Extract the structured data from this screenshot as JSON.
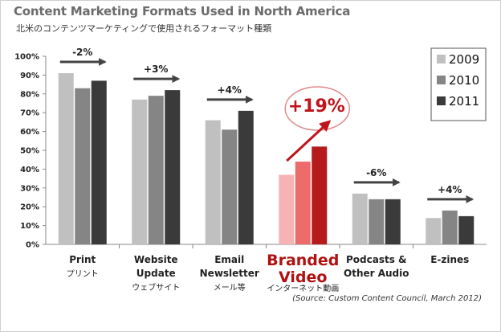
{
  "title": "Content Marketing Formats Used in North America",
  "subtitle": "北米のコンテンツマーケティングで使用されるフォーマット種類",
  "source": "(Source: Custom Content Council, March 2012)",
  "colors": {
    "s2009": "#c0c0c0",
    "s2010": "#858585",
    "s2011": "#3a3a3a",
    "hl2009": "#f7b3b3",
    "hl2010": "#ee6b6b",
    "hl2011": "#b51b1b",
    "accent": "#c0141c"
  },
  "chart_data": {
    "type": "bar",
    "ylim": [
      0,
      100
    ],
    "yticks": [
      "0%",
      "10%",
      "20%",
      "30%",
      "40%",
      "50%",
      "60%",
      "70%",
      "80%",
      "90%",
      "100%"
    ],
    "legend_position": "top-right",
    "grid": false,
    "categories": [
      {
        "en": [
          "Print"
        ],
        "jp": "プリント",
        "delta": "-2%",
        "highlight": false
      },
      {
        "en": [
          "Website",
          "Update"
        ],
        "jp": "ウェブサイト",
        "delta": "+3%",
        "highlight": false
      },
      {
        "en": [
          "Email",
          "Newsletter"
        ],
        "jp": "メール等",
        "delta": "+4%",
        "highlight": false
      },
      {
        "en": [
          "Branded",
          "Video"
        ],
        "jp": "インターネット動画",
        "delta": "+19%",
        "highlight": true
      },
      {
        "en": [
          "Podcasts &",
          "Other Audio"
        ],
        "jp": "",
        "delta": "-6%",
        "highlight": false
      },
      {
        "en": [
          "E-zines"
        ],
        "jp": "",
        "delta": "+4%",
        "highlight": false
      }
    ],
    "series": [
      {
        "name": "2009",
        "values": [
          91,
          77,
          66,
          37,
          27,
          14
        ]
      },
      {
        "name": "2010",
        "values": [
          83,
          79,
          61,
          44,
          24,
          18
        ]
      },
      {
        "name": "2011",
        "values": [
          87,
          82,
          71,
          52,
          24,
          15
        ]
      }
    ]
  }
}
